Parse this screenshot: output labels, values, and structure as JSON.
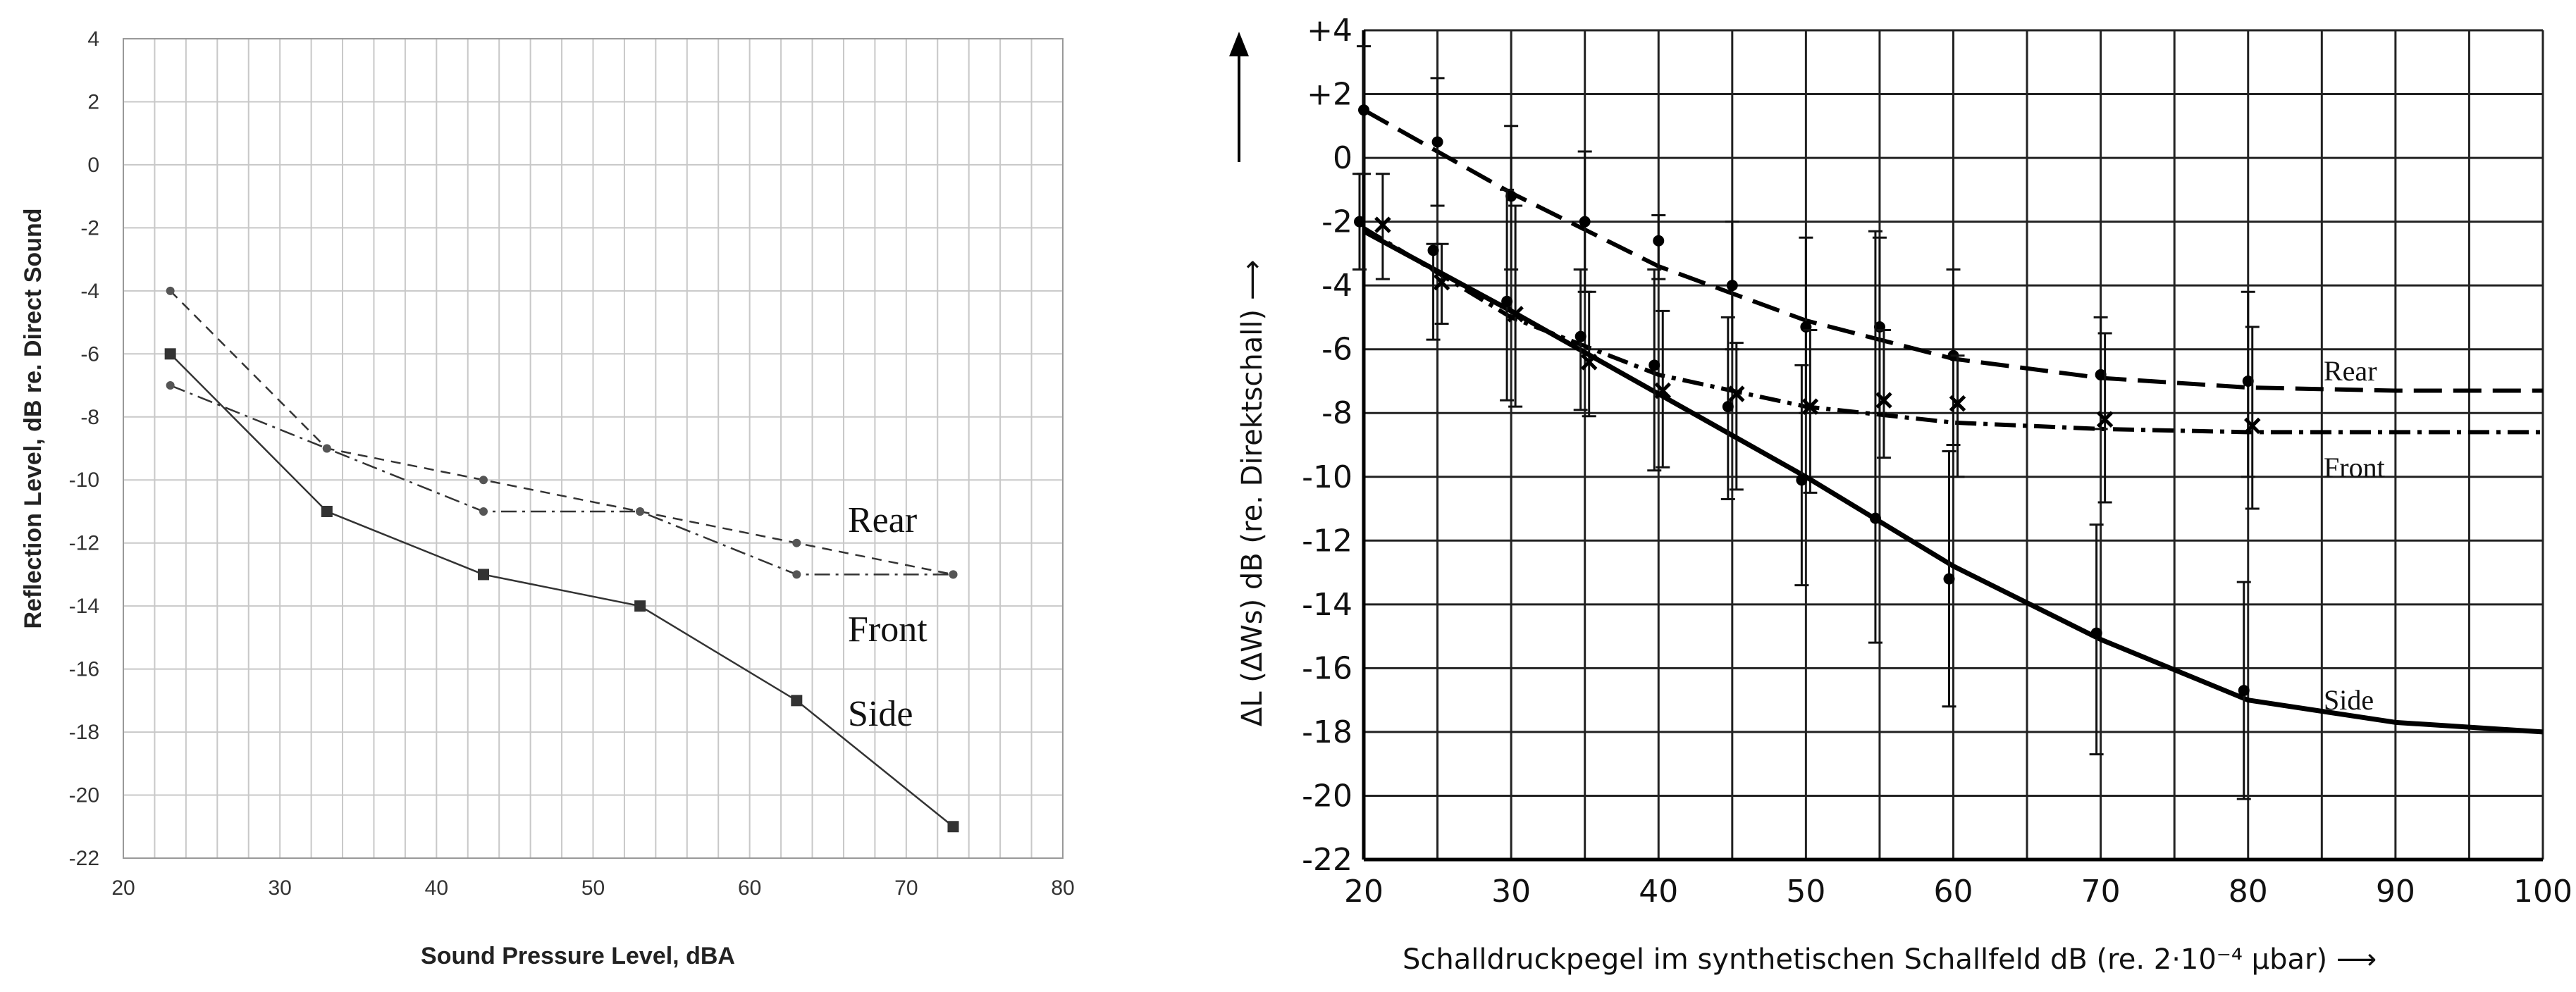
{
  "chart_data": [
    {
      "type": "line",
      "xlabel": "Sound Pressure Level, dBA",
      "ylabel": "Reflection Level, dB re. Direct Sound",
      "xlim": [
        20,
        80
      ],
      "ylim": [
        -22,
        4
      ],
      "xticks": [
        "20",
        "30",
        "40",
        "50",
        "60",
        "70",
        "80"
      ],
      "yticks": [
        "4",
        "2",
        "0",
        "-2",
        "-4",
        "-6",
        "-8",
        "-10",
        "-12",
        "-14",
        "-16",
        "-18",
        "-20",
        "-22"
      ],
      "grid": true,
      "series": [
        {
          "name": "Rear",
          "x": [
            23,
            33,
            43,
            53,
            63,
            73
          ],
          "y": [
            -4,
            -9,
            -10,
            -11,
            -12,
            -13
          ],
          "style": "dashed"
        },
        {
          "name": "Front",
          "x": [
            23,
            33,
            43,
            53,
            63,
            73
          ],
          "y": [
            -7,
            -9,
            -11,
            -11,
            -13,
            -13
          ],
          "style": "dash-dot"
        },
        {
          "name": "Side",
          "x": [
            23,
            33,
            43,
            53,
            63,
            73
          ],
          "y": [
            -6,
            -11,
            -13,
            -14,
            -17,
            -21
          ],
          "style": "solid"
        }
      ]
    },
    {
      "type": "line",
      "xlabel": "Schalldruckpegel im synthetischen Schallfeld dB (re. 2·10⁻⁴ µbar) ⟶",
      "ylabel": "ΔL (ΔWs) dB (re. Direktschall) ⟶",
      "xlim": [
        20,
        100
      ],
      "ylim": [
        -22,
        4
      ],
      "xticks": [
        "20",
        "30",
        "40",
        "50",
        "60",
        "70",
        "80",
        "90",
        "100"
      ],
      "yticks": [
        "+4",
        "+2",
        "0",
        "-2",
        "-4",
        "-6",
        "-8",
        "-10",
        "-12",
        "-14",
        "-16",
        "-18",
        "-20",
        "-22"
      ],
      "grid": true,
      "series": [
        {
          "name": "Rear",
          "style": "long-dash",
          "x": [
            20,
            25,
            30,
            35,
            40,
            45,
            50,
            55,
            60,
            70,
            80
          ],
          "y": [
            1.5,
            0.5,
            -1.2,
            -2.0,
            -2.6,
            -4.0,
            -5.3,
            -5.3,
            -6.2,
            -6.8,
            -7.0
          ],
          "err": [
            [
              3.5,
              -0.5
            ],
            [
              2.5,
              -1.5
            ],
            [
              1.0,
              -3.5
            ],
            [
              0.2,
              -4.2
            ],
            [
              -1.8,
              -3.8
            ],
            [
              -2.0,
              -6.0
            ],
            [
              -2.5,
              -8.0
            ],
            [
              -2.5,
              -8.0
            ],
            [
              -3.5,
              -9.0
            ],
            [
              -5.0,
              -8.5
            ],
            [
              -4.2,
              -10.0
            ]
          ],
          "fit_x": [
            20,
            30,
            40,
            50,
            60,
            70,
            80,
            90,
            100
          ],
          "fit_y": [
            1.5,
            -1.1,
            -3.4,
            -5.1,
            -6.3,
            -6.9,
            -7.2,
            -7.3,
            -7.3
          ]
        },
        {
          "name": "Front",
          "style": "dash-dot",
          "x": [
            21,
            25,
            30,
            35,
            40,
            45,
            50,
            55,
            60,
            70,
            80
          ],
          "y": [
            -2.1,
            -3.9,
            -4.9,
            -6.4,
            -7.3,
            -7.4,
            -7.8,
            -7.6,
            -7.7,
            -8.2,
            -8.4
          ],
          "err": [
            [
              -0.5,
              -3.8
            ],
            [
              -2.7,
              -5.2
            ],
            [
              -1.5,
              -7.8
            ],
            [
              -4.2,
              -8.1
            ],
            [
              -4.8,
              -9.7
            ],
            [
              -5.8,
              -10.4
            ],
            [
              -5.4,
              -10.5
            ],
            [
              -5.4,
              -9.4
            ],
            [
              -6.2,
              -10.0
            ],
            [
              -5.5,
              -10.8
            ],
            [
              -5.3,
              -11.0
            ]
          ],
          "fit_x": [
            20,
            30,
            40,
            50,
            60,
            70,
            80,
            90,
            100
          ],
          "fit_y": [
            -2.2,
            -5.0,
            -6.8,
            -7.8,
            -8.3,
            -8.5,
            -8.6,
            -8.6,
            -8.6
          ]
        },
        {
          "name": "Side",
          "style": "solid",
          "x": [
            20,
            25,
            30,
            35,
            40,
            45,
            50,
            55,
            60,
            70,
            80
          ],
          "y": [
            -2.0,
            -2.9,
            -4.5,
            -5.6,
            -6.5,
            -7.8,
            -10.1,
            -11.3,
            -13.2,
            -14.9,
            -16.7
          ],
          "err": [
            [
              -0.5,
              -3.5
            ],
            [
              -2.7,
              -5.7
            ],
            [
              -1.0,
              -7.6
            ],
            [
              -3.5,
              -7.9
            ],
            [
              -3.5,
              -9.8
            ],
            [
              -5.0,
              -10.7
            ],
            [
              -6.5,
              -13.4
            ],
            [
              -2.3,
              -15.2
            ],
            [
              -9.2,
              -17.2
            ],
            [
              -11.5,
              -18.7
            ],
            [
              -13.3,
              -20.1
            ]
          ],
          "fit_x": [
            20,
            30,
            40,
            50,
            60,
            70,
            80,
            90,
            100
          ],
          "fit_y": [
            -2.3,
            -4.8,
            -7.4,
            -10.0,
            -12.8,
            -15.1,
            -17.0,
            -17.7,
            -18.0
          ]
        }
      ]
    }
  ]
}
